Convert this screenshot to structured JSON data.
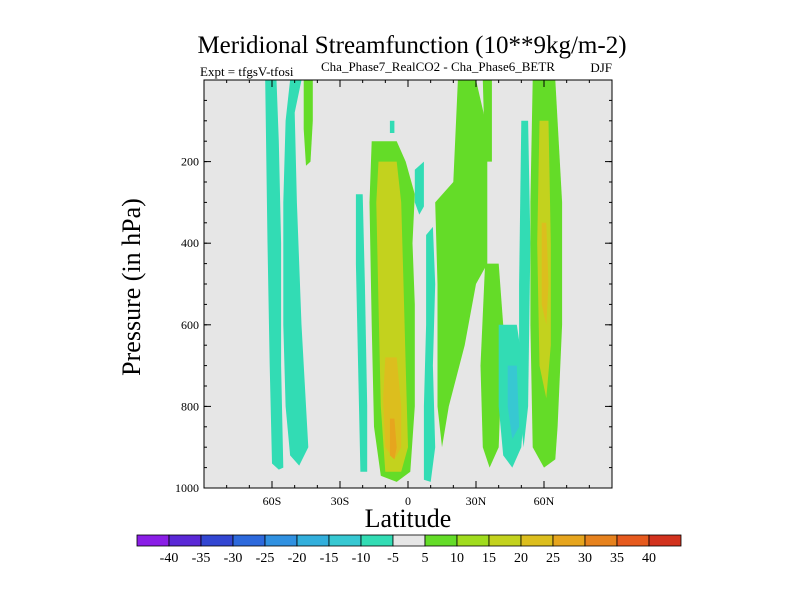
{
  "chart_data": {
    "type": "heatmap",
    "title": "Meridional Streamfunction (10**9kg/m-2)",
    "subtitle_left": "Expt = tfgsV-tfosi",
    "subtitle_center": "Cha_Phase7_RealCO2 - Cha_Phase6_BETR",
    "subtitle_right": "DJF",
    "xlabel": "Latitude",
    "ylabel": "Pressure (in hPa)",
    "xlim": [
      -90,
      90
    ],
    "ylim": [
      1000,
      0
    ],
    "x_ticks": [
      {
        "value": -60,
        "label": "60S"
      },
      {
        "value": -30,
        "label": "30S"
      },
      {
        "value": 0,
        "label": "0"
      },
      {
        "value": 30,
        "label": "30N"
      },
      {
        "value": 60,
        "label": "60N"
      }
    ],
    "y_ticks": [
      {
        "value": 200,
        "label": "200"
      },
      {
        "value": 400,
        "label": "400"
      },
      {
        "value": 600,
        "label": "600"
      },
      {
        "value": 800,
        "label": "800"
      },
      {
        "value": 1000,
        "label": "1000"
      }
    ],
    "background_color": "#e6e6e6",
    "colorbar": {
      "levels": [
        -40,
        -35,
        -30,
        -25,
        -20,
        -15,
        -10,
        -5,
        5,
        10,
        15,
        20,
        25,
        30,
        35,
        40
      ],
      "labels": [
        "-40",
        "-35",
        "-30",
        "-25",
        "-20",
        "-15",
        "-10",
        "-5",
        "5",
        "10",
        "15",
        "20",
        "25",
        "30",
        "35",
        "40"
      ],
      "colors": [
        "#8a1ee6",
        "#5a28d6",
        "#3246d2",
        "#2d69dc",
        "#3091e1",
        "#32afdc",
        "#37c8d2",
        "#32dcb4",
        "#e6e6e6",
        "#64dc28",
        "#a0dc1e",
        "#c3d21e",
        "#dcbe1e",
        "#e6a51e",
        "#e6821e",
        "#e65a1e",
        "#d2321e"
      ]
    },
    "regions": [
      {
        "name": "teal-band-60S",
        "value": -7,
        "points": [
          [
            -63,
            0
          ],
          [
            -58,
            0
          ],
          [
            -57,
            150
          ],
          [
            -56,
            400
          ],
          [
            -56,
            700
          ],
          [
            -55,
            950
          ],
          [
            -57,
            955
          ],
          [
            -60,
            940
          ],
          [
            -61,
            700
          ],
          [
            -62,
            400
          ]
        ]
      },
      {
        "name": "teal-south-broad",
        "value": -7,
        "points": [
          [
            -52,
            0
          ],
          [
            -47,
            0
          ],
          [
            -50,
            80
          ],
          [
            -49,
            300
          ],
          [
            -47,
            600
          ],
          [
            -44,
            900
          ],
          [
            -48,
            945
          ],
          [
            -52,
            920
          ],
          [
            -54,
            800
          ],
          [
            -55,
            600
          ],
          [
            -55,
            300
          ],
          [
            -54,
            100
          ]
        ]
      },
      {
        "name": "green-upper-50S",
        "value": 7,
        "points": [
          [
            -46,
            0
          ],
          [
            -42,
            0
          ],
          [
            -42,
            100
          ],
          [
            -43,
            200
          ],
          [
            -45,
            210
          ],
          [
            -46,
            120
          ]
        ]
      },
      {
        "name": "teal-band-20S",
        "value": -7,
        "points": [
          [
            -23,
            280
          ],
          [
            -20,
            280
          ],
          [
            -19,
            500
          ],
          [
            -18,
            800
          ],
          [
            -18,
            960
          ],
          [
            -21,
            960
          ],
          [
            -22,
            700
          ],
          [
            -23,
            450
          ]
        ]
      },
      {
        "name": "green-equatorial",
        "value": 8,
        "points": [
          [
            -16,
            150
          ],
          [
            -5,
            150
          ],
          [
            -1,
            200
          ],
          [
            3,
            280
          ],
          [
            2,
            400
          ],
          [
            3,
            550
          ],
          [
            3,
            800
          ],
          [
            1,
            960
          ],
          [
            -5,
            985
          ],
          [
            -12,
            970
          ],
          [
            -15,
            850
          ],
          [
            -16,
            600
          ],
          [
            -17,
            300
          ]
        ]
      },
      {
        "name": "yellow-equatorial",
        "value": 17,
        "points": [
          [
            -13,
            200
          ],
          [
            -5,
            200
          ],
          [
            -3,
            300
          ],
          [
            -2,
            500
          ],
          [
            -1,
            700
          ],
          [
            0,
            900
          ],
          [
            -3,
            960
          ],
          [
            -10,
            960
          ],
          [
            -12,
            800
          ],
          [
            -13,
            550
          ],
          [
            -14,
            300
          ]
        ]
      },
      {
        "name": "orange-equatorial",
        "value": 23,
        "points": [
          [
            -10,
            680
          ],
          [
            -5,
            680
          ],
          [
            -3,
            800
          ],
          [
            -3,
            900
          ],
          [
            -6,
            930
          ],
          [
            -10,
            900
          ],
          [
            -11,
            780
          ]
        ]
      },
      {
        "name": "core-equatorial",
        "value": 28,
        "points": [
          [
            -8,
            830
          ],
          [
            -6,
            830
          ],
          [
            -5,
            900
          ],
          [
            -6,
            930
          ],
          [
            -8,
            920
          ]
        ]
      },
      {
        "name": "teal-small-0",
        "value": -7,
        "points": [
          [
            -8,
            100
          ],
          [
            -6,
            100
          ],
          [
            -6,
            130
          ],
          [
            -8,
            130
          ]
        ]
      },
      {
        "name": "teal-5N",
        "value": -7,
        "points": [
          [
            3,
            220
          ],
          [
            7,
            200
          ],
          [
            7,
            310
          ],
          [
            5,
            330
          ],
          [
            3,
            300
          ]
        ]
      },
      {
        "name": "teal-10N",
        "value": -7,
        "points": [
          [
            8,
            380
          ],
          [
            11,
            360
          ],
          [
            12,
            500
          ],
          [
            11,
            700
          ],
          [
            12,
            900
          ],
          [
            10,
            985
          ],
          [
            7,
            980
          ],
          [
            7,
            800
          ],
          [
            8,
            600
          ]
        ]
      },
      {
        "name": "green-20N-main",
        "value": 8,
        "points": [
          [
            12,
            300
          ],
          [
            20,
            250
          ],
          [
            22,
            0
          ],
          [
            30,
            0
          ],
          [
            35,
            120
          ],
          [
            35,
            450
          ],
          [
            30,
            500
          ],
          [
            25,
            650
          ],
          [
            18,
            800
          ],
          [
            15,
            900
          ],
          [
            13,
            800
          ],
          [
            13,
            500
          ]
        ]
      },
      {
        "name": "green-34N",
        "value": 8,
        "points": [
          [
            33,
            0
          ],
          [
            37,
            0
          ],
          [
            37,
            200
          ],
          [
            34,
            200
          ]
        ]
      },
      {
        "name": "green-35N-lower",
        "value": 8,
        "points": [
          [
            34,
            450
          ],
          [
            40,
            450
          ],
          [
            42,
            600
          ],
          [
            40,
            900
          ],
          [
            36,
            950
          ],
          [
            33,
            900
          ],
          [
            32,
            700
          ]
        ]
      },
      {
        "name": "teal-45N",
        "value": -8,
        "points": [
          [
            40,
            600
          ],
          [
            48,
            600
          ],
          [
            52,
            750
          ],
          [
            50,
            900
          ],
          [
            46,
            950
          ],
          [
            42,
            920
          ],
          [
            40,
            800
          ]
        ]
      },
      {
        "name": "teal-45N-core",
        "value": -12,
        "points": [
          [
            44,
            700
          ],
          [
            48,
            700
          ],
          [
            49,
            850
          ],
          [
            46,
            880
          ],
          [
            44,
            800
          ]
        ]
      },
      {
        "name": "teal-50N",
        "value": -7,
        "points": [
          [
            50,
            100
          ],
          [
            53,
            100
          ],
          [
            54,
            400
          ],
          [
            53,
            800
          ],
          [
            51,
            900
          ],
          [
            49,
            800
          ],
          [
            49,
            500
          ]
        ]
      },
      {
        "name": "green-60N-band",
        "value": 8,
        "points": [
          [
            55,
            0
          ],
          [
            65,
            0
          ],
          [
            68,
            300
          ],
          [
            68,
            600
          ],
          [
            66,
            850
          ],
          [
            65,
            930
          ],
          [
            60,
            950
          ],
          [
            55,
            900
          ],
          [
            54,
            600
          ],
          [
            54,
            300
          ]
        ]
      },
      {
        "name": "yellow-60N-band",
        "value": 16,
        "points": [
          [
            58,
            100
          ],
          [
            62,
            100
          ],
          [
            63,
            400
          ],
          [
            63,
            650
          ],
          [
            61,
            780
          ],
          [
            58,
            700
          ],
          [
            57,
            400
          ]
        ]
      },
      {
        "name": "orange-60N-band",
        "value": 20,
        "points": [
          [
            59,
            350
          ],
          [
            61,
            350
          ],
          [
            62,
            500
          ],
          [
            61,
            600
          ],
          [
            59,
            550
          ]
        ]
      }
    ]
  }
}
